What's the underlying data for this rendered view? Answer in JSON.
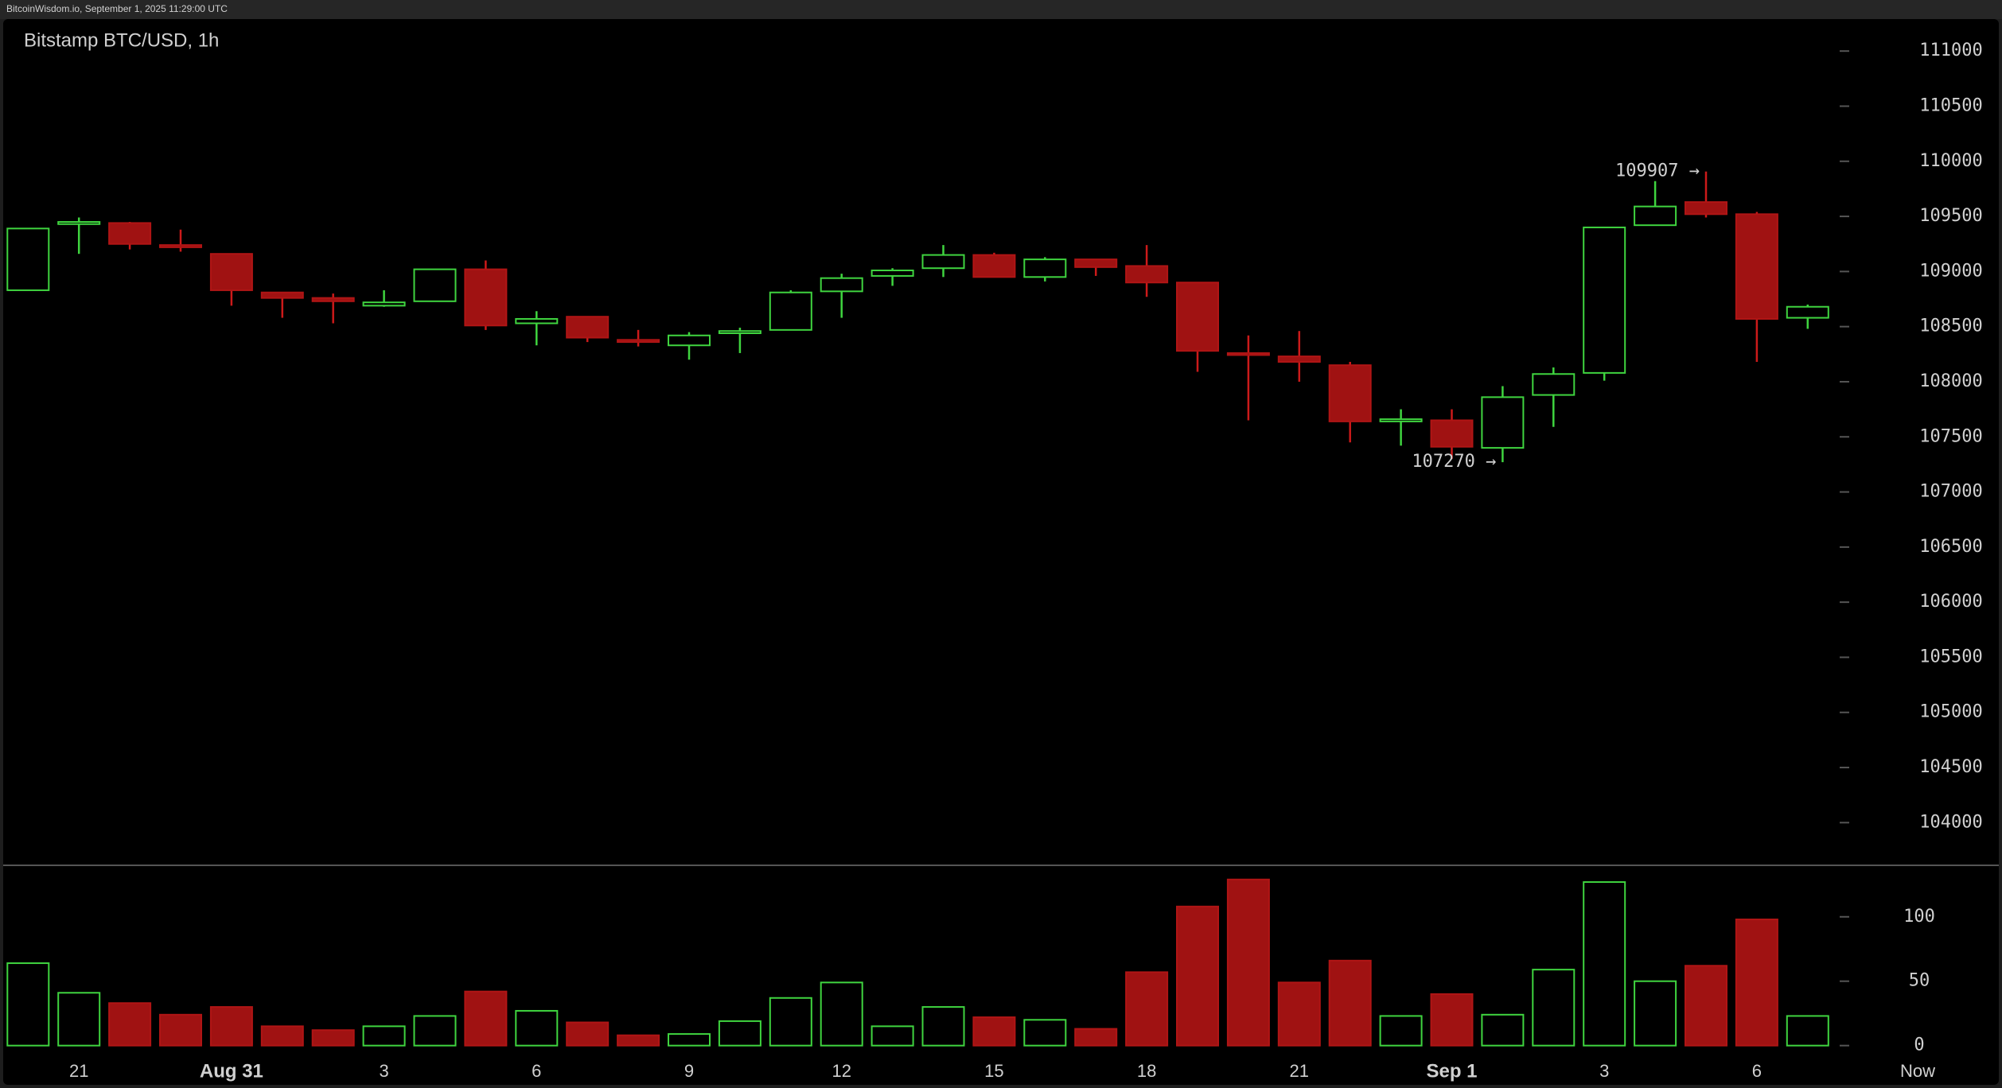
{
  "header": "BitcoinWisdom.io, September 1, 2025 11:29:00 UTC",
  "chart_data": {
    "type": "candlestick",
    "title": "Bitstamp BTC/USD, 1h",
    "categories": [
      null,
      "21",
      null,
      null,
      "Aug 31",
      null,
      null,
      "3",
      null,
      null,
      "6",
      null,
      null,
      "9",
      null,
      null,
      "12",
      null,
      null,
      "15",
      null,
      null,
      "18",
      null,
      null,
      "21",
      null,
      null,
      "Sep 1",
      null,
      null,
      "3",
      null,
      null,
      "6",
      null
    ],
    "now_label": "Now",
    "open": [
      108830,
      109430,
      109440,
      109240,
      109160,
      108810,
      108760,
      108690,
      108730,
      109020,
      108530,
      108590,
      108380,
      108330,
      108440,
      108470,
      108820,
      108960,
      109030,
      109150,
      108950,
      109110,
      109050,
      108900,
      108260,
      108230,
      108150,
      107640,
      107650,
      107400,
      107880,
      108080,
      109420,
      109630,
      109520,
      108580
    ],
    "high": [
      109390,
      109490,
      109450,
      109380,
      109160,
      108810,
      108800,
      108830,
      109020,
      109100,
      108640,
      108590,
      108470,
      108450,
      108490,
      108830,
      108980,
      109030,
      109240,
      109170,
      109130,
      109110,
      109240,
      108900,
      108420,
      108460,
      108180,
      107750,
      107750,
      107960,
      108130,
      109400,
      109820,
      109907,
      109540,
      108700
    ],
    "low": [
      108830,
      109160,
      109200,
      109180,
      108690,
      108580,
      108530,
      108680,
      108730,
      108470,
      108330,
      108360,
      108320,
      108200,
      108260,
      108470,
      108580,
      108870,
      108950,
      108950,
      108910,
      108960,
      108770,
      108090,
      107650,
      108000,
      107450,
      107420,
      107300,
      107270,
      107590,
      108010,
      109420,
      109490,
      108180,
      108480
    ],
    "close": [
      109390,
      109450,
      109250,
      109220,
      108830,
      108760,
      108730,
      108720,
      109020,
      108510,
      108570,
      108400,
      108360,
      108420,
      108460,
      108810,
      108940,
      109010,
      109150,
      108950,
      109110,
      109040,
      108900,
      108280,
      108250,
      108180,
      107640,
      107660,
      107410,
      107860,
      108070,
      109400,
      109590,
      109520,
      108570,
      108680
    ],
    "volume": [
      64,
      41,
      33,
      24,
      30,
      15,
      12,
      15,
      23,
      42,
      27,
      18,
      8,
      9,
      19,
      37,
      49,
      15,
      30,
      22,
      20,
      13,
      57,
      108,
      129,
      49,
      66,
      23,
      40,
      24,
      59,
      127,
      50,
      62,
      98,
      23
    ],
    "up_color": "#3fd43f",
    "down_color": "#a01212",
    "ylim": [
      103620,
      111290
    ],
    "yticks": [
      104000,
      104500,
      105000,
      105500,
      106000,
      106500,
      107000,
      107500,
      108000,
      108500,
      109000,
      109500,
      110000,
      110500,
      111000
    ],
    "volume_ylim": [
      -7,
      140
    ],
    "volume_yticks": [
      0,
      50,
      100
    ],
    "high_label": {
      "value": 109907,
      "label": "109907 →"
    },
    "low_label": {
      "value": 107270,
      "label": "107270 →"
    }
  }
}
